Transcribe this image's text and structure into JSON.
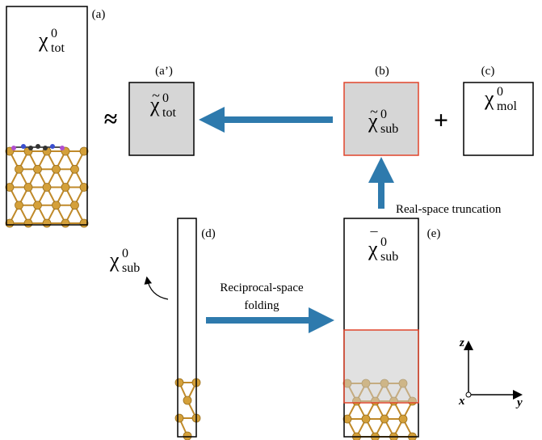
{
  "panels": [
    {
      "label": "(a)",
      "symbol": {
        "base": "χ",
        "sup": "0",
        "sub": "tot"
      }
    },
    {
      "label": "(a’)",
      "symbol": {
        "accent": "~",
        "base": "χ",
        "sup": "0",
        "sub": "tot"
      }
    },
    {
      "label": "(b)",
      "symbol": {
        "accent": "~",
        "base": "χ",
        "sup": "0",
        "sub": "sub"
      }
    },
    {
      "label": "(c)",
      "symbol": {
        "base": "χ",
        "sup": "0",
        "sub": "mol"
      }
    },
    {
      "label": "(d)",
      "symbol": {
        "base": "χ",
        "sup": "0",
        "sub": "sub"
      }
    },
    {
      "label": "(e)",
      "symbol": {
        "accent": "¯",
        "base": "χ",
        "sup": "0",
        "sub": "sub"
      }
    }
  ],
  "operators": [
    "≈",
    "+"
  ],
  "arrows": [
    {
      "label_lines": [
        "Real-space truncation"
      ]
    },
    {
      "label_lines": [
        "Reciprocal-space",
        "folding"
      ]
    }
  ],
  "axes": {
    "z": "z",
    "x": "x",
    "y": "y"
  }
}
